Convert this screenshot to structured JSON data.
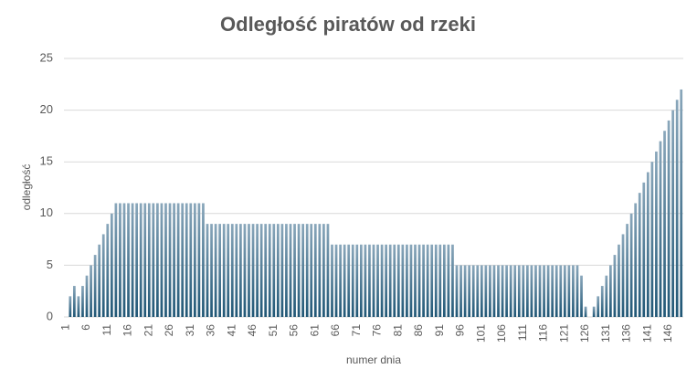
{
  "chart_data": {
    "type": "bar",
    "title": "Odległość piratów od rzeki",
    "x_label": "numer dnia",
    "y_label": "odległość",
    "categories": [
      1,
      null,
      null,
      null,
      null,
      6,
      null,
      null,
      null,
      null,
      11,
      null,
      null,
      null,
      null,
      16,
      null,
      null,
      null,
      null,
      21,
      null,
      null,
      null,
      null,
      26,
      null,
      null,
      null,
      null,
      31,
      null,
      null,
      null,
      null,
      36,
      null,
      null,
      null,
      null,
      41,
      null,
      null,
      null,
      null,
      46,
      null,
      null,
      null,
      null,
      51,
      null,
      null,
      null,
      null,
      56,
      null,
      null,
      null,
      null,
      61,
      null,
      null,
      null,
      null,
      66,
      null,
      null,
      null,
      null,
      71,
      null,
      null,
      null,
      null,
      76,
      null,
      null,
      null,
      null,
      81,
      null,
      null,
      null,
      null,
      86,
      null,
      null,
      null,
      null,
      91,
      null,
      null,
      null,
      null,
      96,
      null,
      null,
      null,
      null,
      101,
      null,
      null,
      null,
      null,
      106,
      null,
      null,
      null,
      null,
      111,
      null,
      null,
      null,
      null,
      116,
      null,
      null,
      null,
      null,
      121,
      null,
      null,
      null,
      null,
      126,
      null,
      null,
      null,
      null,
      131,
      null,
      null,
      null,
      null,
      136,
      null,
      null,
      null,
      null,
      141,
      null,
      null,
      null,
      null,
      146,
      null,
      null,
      null
    ],
    "values": [
      0,
      2,
      3,
      2,
      3,
      4,
      5,
      6,
      7,
      8,
      9,
      10,
      11,
      11,
      11,
      11,
      11,
      11,
      11,
      11,
      11,
      11,
      11,
      11,
      11,
      11,
      11,
      11,
      11,
      11,
      11,
      11,
      11,
      11,
      9,
      9,
      9,
      9,
      9,
      9,
      9,
      9,
      9,
      9,
      9,
      9,
      9,
      9,
      9,
      9,
      9,
      9,
      9,
      9,
      9,
      9,
      9,
      9,
      9,
      9,
      9,
      9,
      9,
      9,
      7,
      7,
      7,
      7,
      7,
      7,
      7,
      7,
      7,
      7,
      7,
      7,
      7,
      7,
      7,
      7,
      7,
      7,
      7,
      7,
      7,
      7,
      7,
      7,
      7,
      7,
      7,
      7,
      7,
      7,
      5,
      5,
      5,
      5,
      5,
      5,
      5,
      5,
      5,
      5,
      5,
      5,
      5,
      5,
      5,
      5,
      5,
      5,
      5,
      5,
      5,
      5,
      5,
      5,
      5,
      5,
      5,
      5,
      5,
      5,
      4,
      1,
      0,
      1,
      2,
      3,
      4,
      5,
      6,
      7,
      8,
      9,
      10,
      11,
      12,
      13,
      14,
      15,
      16,
      17,
      18,
      19,
      20,
      21,
      22
    ],
    "color": "#1f5675",
    "ylim": [
      0,
      25
    ],
    "yticks": [
      0,
      5,
      10,
      15,
      20,
      25
    ],
    "grid": true
  }
}
